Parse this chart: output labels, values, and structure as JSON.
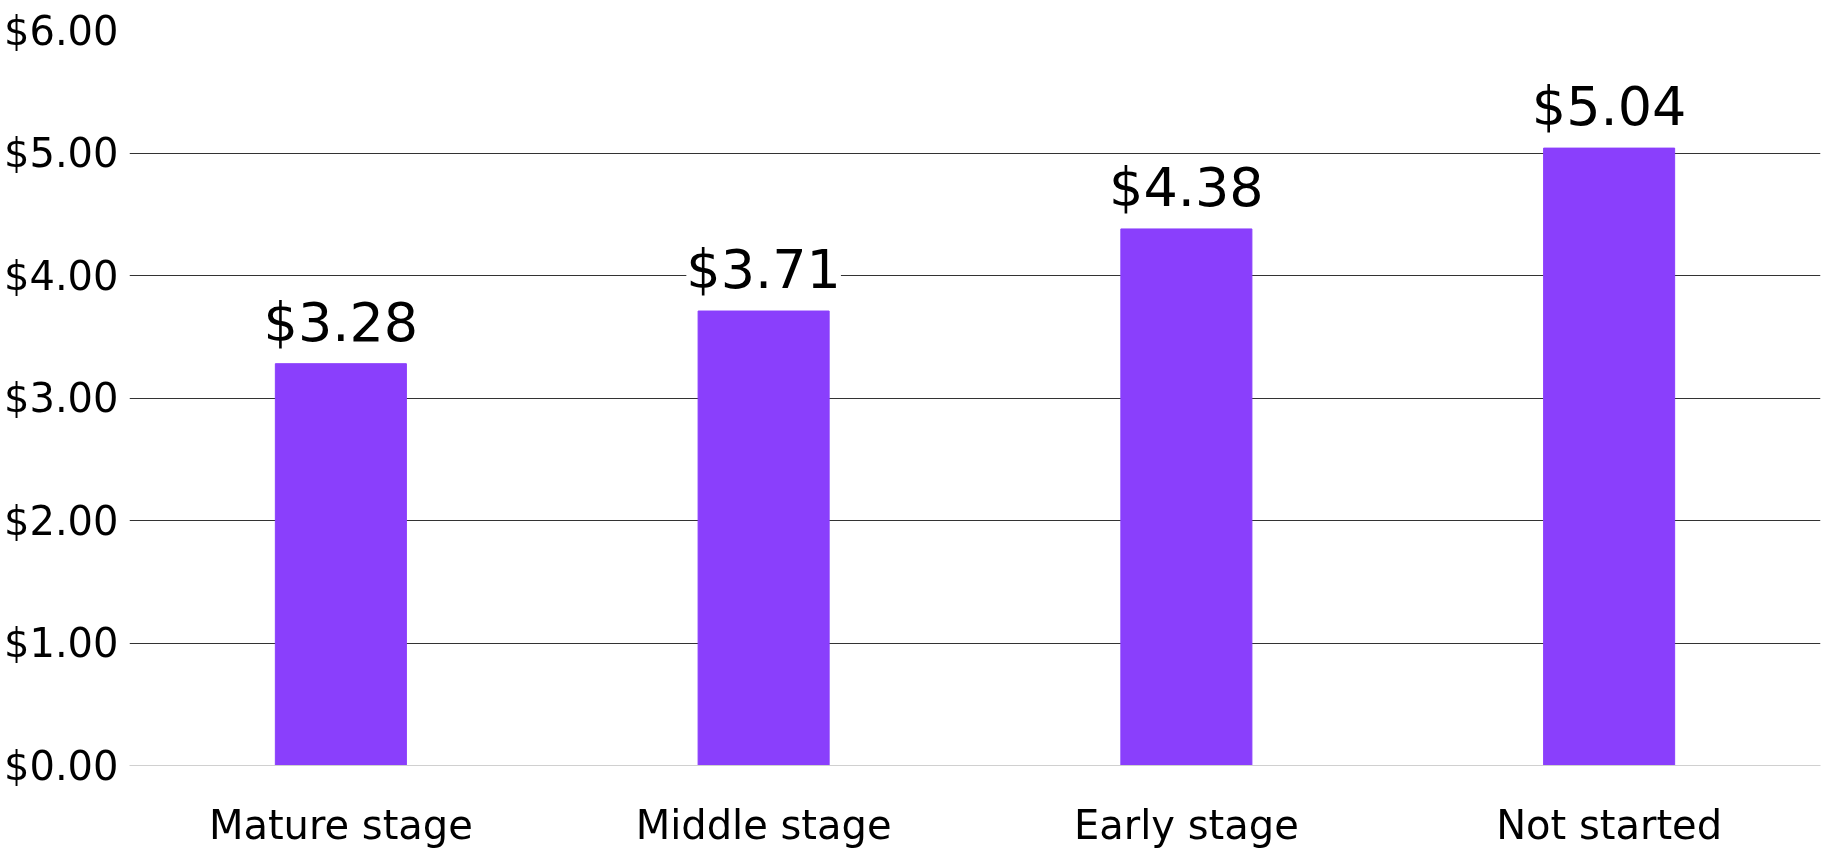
{
  "chart_data": {
    "type": "bar",
    "categories": [
      "Mature stage",
      "Middle stage",
      "Early stage",
      "Not started"
    ],
    "values": [
      3.28,
      3.71,
      4.38,
      5.04
    ],
    "value_labels": [
      "$3.28",
      "$3.71",
      "$4.38",
      "$5.04"
    ],
    "color": "#8a3ffc",
    "ylim": [
      0,
      6
    ],
    "yticks": [
      {
        "value": 0,
        "label": "$0.00"
      },
      {
        "value": 1,
        "label": "$1.00"
      },
      {
        "value": 2,
        "label": "$2.00"
      },
      {
        "value": 3,
        "label": "$3.00"
      },
      {
        "value": 4,
        "label": "$4.00"
      },
      {
        "value": 5,
        "label": "$5.00"
      },
      {
        "value": 6,
        "label": "$6.00"
      }
    ],
    "grid": "y"
  }
}
